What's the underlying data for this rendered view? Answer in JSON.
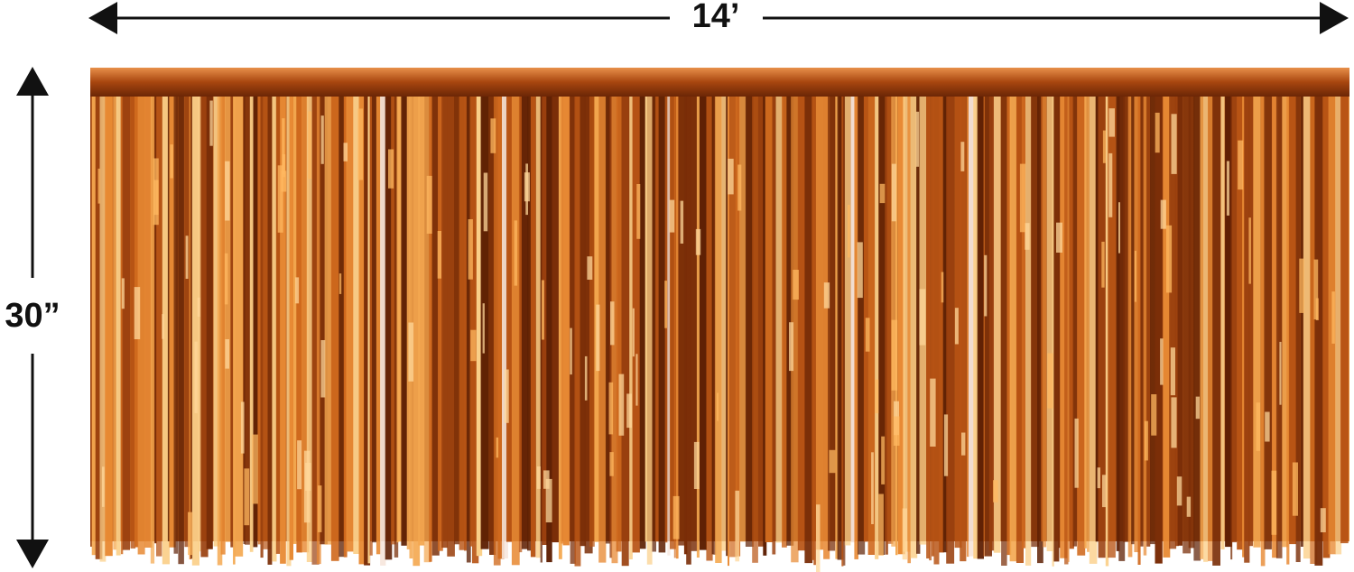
{
  "dimensions": {
    "width": "14’",
    "height": "30”"
  }
}
